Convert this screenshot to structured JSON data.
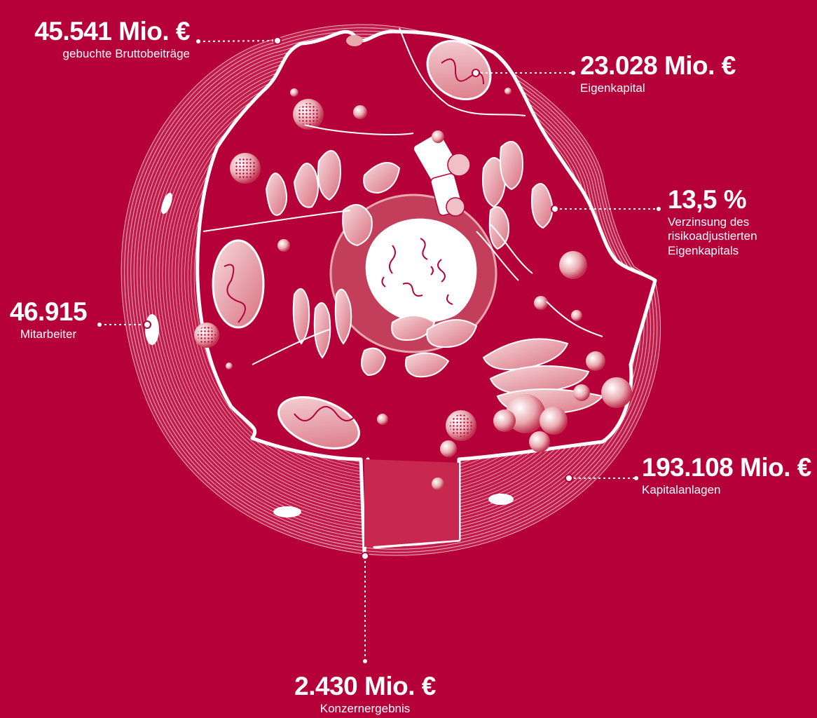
{
  "metrics": {
    "gross_premiums": {
      "value": "45.541 Mio. €",
      "label": "gebuchte Bruttobeiträge"
    },
    "equity": {
      "value": "23.028 Mio. €",
      "label": "Eigenkapital"
    },
    "rorac": {
      "value": "13,5 %",
      "label_lines": [
        "Verzinsung des",
        "risikoadjustierten",
        "Eigenkapitals"
      ]
    },
    "employees": {
      "value": "46.915",
      "label": "Mitarbeiter"
    },
    "investments": {
      "value": "193.108 Mio. €",
      "label": "Kapitalanlagen"
    },
    "group_result": {
      "value": "2.430 Mio. €",
      "label": "Konzernergebnis"
    }
  },
  "colors": {
    "background": "#B5003A",
    "foreground": "#FFFFFF",
    "organelle": "#E7A8AE",
    "rim": "#F3D3D6"
  },
  "illustration": {
    "type": "cell-cross-section"
  }
}
